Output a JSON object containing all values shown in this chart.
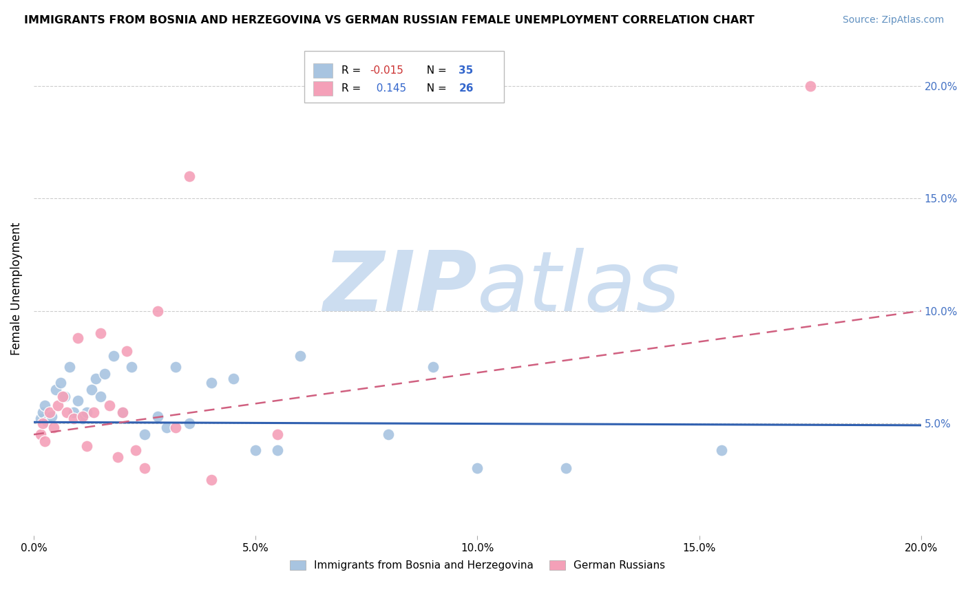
{
  "title": "IMMIGRANTS FROM BOSNIA AND HERZEGOVINA VS GERMAN RUSSIAN FEMALE UNEMPLOYMENT CORRELATION CHART",
  "source": "Source: ZipAtlas.com",
  "ylabel": "Female Unemployment",
  "xlim": [
    0.0,
    20.0
  ],
  "ylim": [
    0.0,
    22.0
  ],
  "xticks": [
    0.0,
    5.0,
    10.0,
    15.0,
    20.0
  ],
  "xtick_labels": [
    "0.0%",
    "5.0%",
    "10.0%",
    "15.0%",
    "20.0%"
  ],
  "yticks": [
    5.0,
    10.0,
    15.0,
    20.0
  ],
  "ytick_labels": [
    "5.0%",
    "10.0%",
    "15.0%",
    "20.0%"
  ],
  "blue_R": -0.015,
  "blue_N": 35,
  "pink_R": 0.145,
  "pink_N": 26,
  "blue_color": "#a8c4e0",
  "pink_color": "#f4a0b8",
  "blue_line_color": "#3060b0",
  "pink_line_color": "#d06080",
  "pink_line_dash": [
    6,
    4
  ],
  "watermark_zip": "ZIP",
  "watermark_atlas": "atlas",
  "watermark_color": "#ccddf0",
  "legend_blue_label": "Immigrants from Bosnia and Herzegovina",
  "legend_pink_label": "German Russians",
  "blue_x": [
    0.15,
    0.2,
    0.25,
    0.3,
    0.4,
    0.5,
    0.6,
    0.7,
    0.8,
    0.9,
    1.0,
    1.1,
    1.2,
    1.3,
    1.4,
    1.5,
    1.6,
    1.8,
    2.0,
    2.2,
    2.5,
    2.8,
    3.0,
    3.2,
    3.5,
    4.0,
    4.5,
    5.0,
    5.5,
    6.0,
    8.0,
    9.0,
    10.0,
    12.0,
    15.5
  ],
  "blue_y": [
    5.2,
    5.5,
    5.8,
    5.1,
    5.3,
    6.5,
    6.8,
    6.2,
    7.5,
    5.5,
    6.0,
    5.2,
    5.5,
    6.5,
    7.0,
    6.2,
    7.2,
    8.0,
    5.5,
    7.5,
    4.5,
    5.3,
    4.8,
    7.5,
    5.0,
    6.8,
    7.0,
    3.8,
    3.8,
    8.0,
    4.5,
    7.5,
    3.0,
    3.0,
    3.8
  ],
  "pink_x": [
    0.15,
    0.2,
    0.25,
    0.35,
    0.45,
    0.55,
    0.65,
    0.75,
    0.9,
    1.0,
    1.1,
    1.2,
    1.35,
    1.5,
    1.7,
    1.9,
    2.0,
    2.1,
    2.3,
    2.5,
    2.8,
    3.2,
    3.5,
    4.0,
    17.5,
    5.5
  ],
  "pink_y": [
    4.5,
    5.0,
    4.2,
    5.5,
    4.8,
    5.8,
    6.2,
    5.5,
    5.2,
    8.8,
    5.3,
    4.0,
    5.5,
    9.0,
    5.8,
    3.5,
    5.5,
    8.2,
    3.8,
    3.0,
    10.0,
    4.8,
    16.0,
    2.5,
    20.0,
    4.5
  ]
}
